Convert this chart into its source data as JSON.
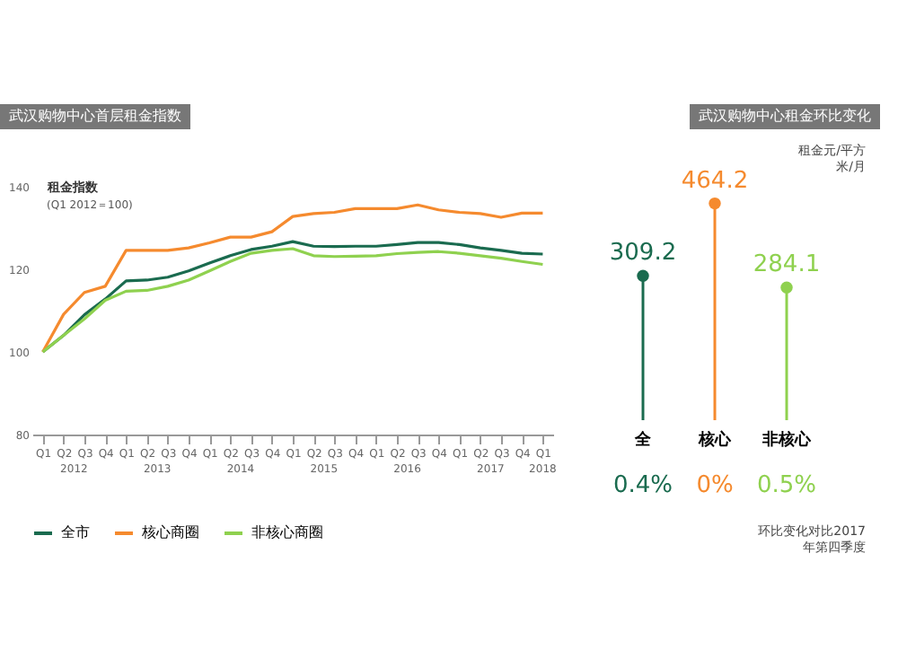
{
  "chart_data": [
    {
      "type": "line",
      "title": "武汉购物中心首层租金指数",
      "ylabel": "租金指数",
      "subtitle": "(Q1 2012＝100)",
      "annotations": [
        "2012",
        "2013",
        "2014",
        "2015",
        "2016",
        "2017",
        "2018"
      ],
      "categories": [
        "Q1",
        "Q2",
        "Q3",
        "Q4",
        "Q1",
        "Q2",
        "Q3",
        "Q4",
        "Q1",
        "Q2",
        "Q3",
        "Q4",
        "Q1",
        "Q2",
        "Q3",
        "Q4",
        "Q1",
        "Q2",
        "Q3",
        "Q4",
        "Q1",
        "Q2",
        "Q3",
        "Q4",
        "Q1"
      ],
      "series": [
        {
          "name": "全市",
          "color": "#1a6b4f",
          "values": [
            100,
            104,
            109,
            112.8,
            117.2,
            117.4,
            118.1,
            119.6,
            121.5,
            123.3,
            124.8,
            125.6,
            126.7,
            125.6,
            125.5,
            125.6,
            125.6,
            126.0,
            126.5,
            126.5,
            126.0,
            125.2,
            124.6,
            123.9,
            123.7
          ]
        },
        {
          "name": "核心商圈",
          "color": "#f58a2e",
          "values": [
            100,
            109.1,
            114.4,
            115.9,
            124.6,
            124.6,
            124.6,
            125.2,
            126.4,
            127.8,
            127.8,
            129.1,
            132.8,
            133.5,
            133.8,
            134.7,
            134.7,
            134.7,
            135.6,
            134.4,
            133.8,
            133.5,
            132.6,
            133.6,
            133.6
          ]
        },
        {
          "name": "非核心商圈",
          "color": "#8fd14f",
          "values": [
            100,
            104,
            108,
            112.5,
            114.7,
            114.9,
            115.9,
            117.4,
            119.6,
            121.9,
            123.9,
            124.6,
            125.0,
            123.3,
            123.1,
            123.2,
            123.3,
            123.8,
            124.1,
            124.3,
            123.9,
            123.3,
            122.7,
            121.9,
            121.2
          ]
        }
      ],
      "ylim": [
        80,
        140
      ],
      "yticks": [
        80,
        100,
        120,
        140
      ],
      "legend": "bottom"
    },
    {
      "type": "lollipop",
      "title": "武汉购物中心租金环比变化",
      "ylabel": "租金元/平方米/月",
      "categories": [
        "全",
        "核心",
        "非核心"
      ],
      "values": [
        309.2,
        464.2,
        284.1
      ],
      "colors": [
        "#1a6b4f",
        "#f58a2e",
        "#8fd14f"
      ],
      "data_labels": true,
      "annotations": [
        "0.4%",
        "0%",
        "0.5%",
        "环比变化对比2017年第四季度"
      ]
    }
  ]
}
